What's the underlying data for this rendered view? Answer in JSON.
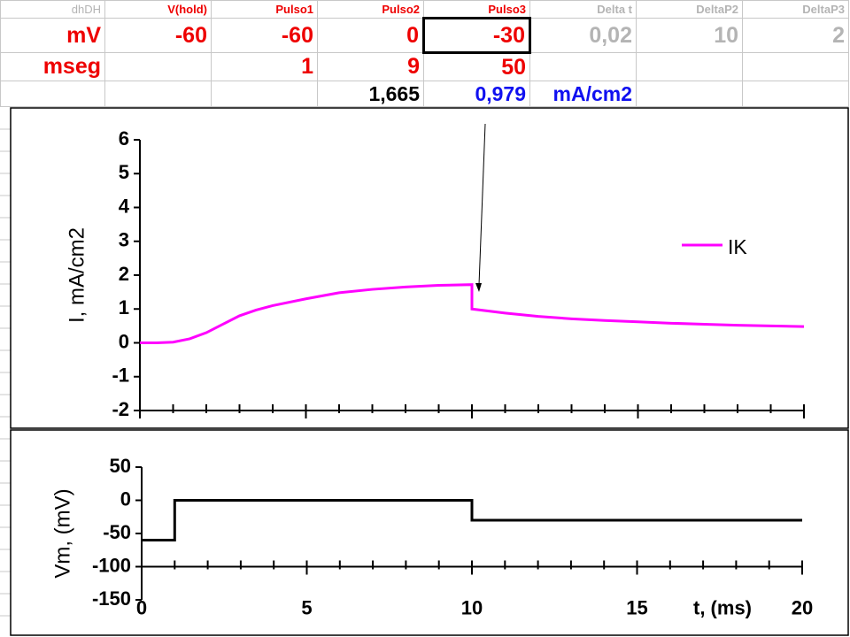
{
  "table": {
    "rows": [
      [
        "dhDH",
        "V(hold)",
        "Pulso1",
        "Pulso2",
        "Pulso3",
        "Delta t",
        "DeltaP2",
        "DeltaP3"
      ],
      [
        "mV",
        "-60",
        "-60",
        "0",
        "-30",
        "0,02",
        "10",
        "2"
      ],
      [
        "mseg",
        null,
        "1",
        "9",
        "50",
        null,
        null,
        null
      ],
      [
        null,
        null,
        null,
        "1,665",
        "0,979",
        "mA/cm2",
        null,
        null
      ]
    ]
  },
  "chart_data": [
    {
      "type": "line",
      "ylabel": "I, mA/cm2",
      "x": [
        0,
        0.5,
        1,
        1.5,
        2,
        2.5,
        3,
        3.5,
        4,
        5,
        6,
        7,
        8,
        9,
        10,
        10,
        11,
        12,
        13,
        14,
        15,
        16,
        17,
        18,
        19,
        20
      ],
      "series": [
        {
          "name": "IK",
          "color": "#ff00ff",
          "values": [
            0,
            0,
            0.02,
            0.12,
            0.3,
            0.55,
            0.8,
            0.97,
            1.1,
            1.3,
            1.48,
            1.58,
            1.65,
            1.7,
            1.72,
            1.0,
            0.88,
            0.78,
            0.71,
            0.66,
            0.62,
            0.58,
            0.55,
            0.52,
            0.5,
            0.48
          ]
        }
      ],
      "xlim": [
        0,
        20
      ],
      "xticks": [
        0,
        5,
        10,
        15,
        20
      ],
      "xtick_labels": false,
      "ylim": [
        -2,
        6
      ],
      "yticks": [
        -2,
        -1,
        0,
        1,
        2,
        3,
        4,
        5,
        6
      ],
      "legend": "right"
    },
    {
      "type": "line",
      "ylabel": "Vm, (mV)",
      "xlabel": "t, (ms)",
      "x": [
        0,
        1,
        1,
        10,
        10,
        20
      ],
      "series": [
        {
          "color": "#000000",
          "values": [
            -60,
            -60,
            0,
            0,
            -30,
            -30
          ]
        }
      ],
      "xlim": [
        0,
        20
      ],
      "xticks": [
        0,
        5,
        10,
        15,
        20
      ],
      "xtick_labels": true,
      "ylim": [
        -150,
        50
      ],
      "yticks": [
        -150,
        -100,
        -50,
        0,
        50
      ],
      "xaxis_at": -100
    }
  ]
}
